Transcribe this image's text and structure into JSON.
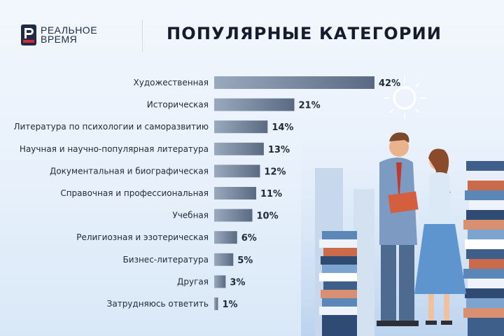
{
  "brand": {
    "line1": "РЕАЛЬНОЕ",
    "line2": "ВРЕМЯ",
    "logo_color": "#d7263d"
  },
  "colors": {
    "bar_light": "#9aa9bd",
    "bar_dark": "#5a6a82",
    "text": "#1f2937"
  },
  "chart_data": {
    "type": "bar",
    "orientation": "horizontal",
    "title": "ПОПУЛЯРНЫЕ КАТЕГОРИИ",
    "categories": [
      "Художественная",
      "Историческая",
      "Литература по психологии и саморазвитию",
      "Научная и научно-популярная литература",
      "Документальная и биографическая",
      "Справочная и профессиональная",
      "Учебная",
      "Религиозная и эзотерическая",
      "Бизнес-литература",
      "Другая",
      "Затрудняюсь ответить"
    ],
    "values": [
      42,
      21,
      14,
      13,
      12,
      11,
      10,
      6,
      5,
      3,
      1
    ],
    "value_labels": [
      "42%",
      "21%",
      "14%",
      "13%",
      "12%",
      "11%",
      "10%",
      "6%",
      "5%",
      "3%",
      "1%"
    ],
    "xlim": [
      0,
      42
    ],
    "grid": false,
    "legend": "none"
  }
}
